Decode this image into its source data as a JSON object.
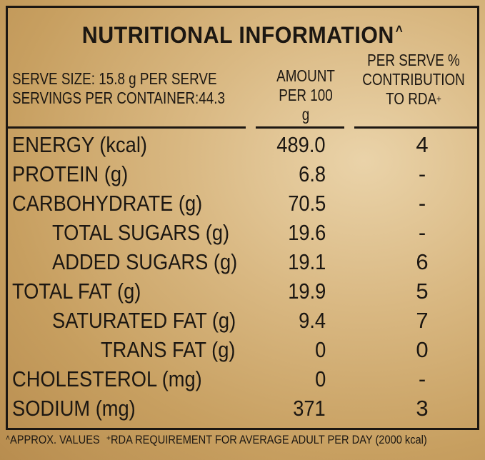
{
  "title": "NUTRITIONAL INFORMATION",
  "title_mark": "˄",
  "serve_size": "SERVE SIZE: 15.8 g PER SERVE",
  "servings": "SERVINGS PER CONTAINER:44.3",
  "amount_header": [
    "AMOUNT",
    "PER 100 g"
  ],
  "rda_header": [
    "PER SERVE %",
    "CONTRIBUTION",
    "TO RDA"
  ],
  "rda_mark": "+",
  "rows": [
    {
      "label": "ENERGY (kcal)",
      "amount": "489.0",
      "rda": "4",
      "indent": 0
    },
    {
      "label": "PROTEIN (g)",
      "amount": "6.8",
      "rda": "-",
      "indent": 0
    },
    {
      "label": "CARBOHYDRATE (g)",
      "amount": "70.5",
      "rda": "-",
      "indent": 0
    },
    {
      "label": "TOTAL SUGARS (g)",
      "amount": "19.6",
      "rda": "-",
      "indent": 1
    },
    {
      "label": "ADDED SUGARS (g)",
      "amount": "19.1",
      "rda": "6",
      "indent": 1
    },
    {
      "label": "TOTAL FAT (g)",
      "amount": "19.9",
      "rda": "5",
      "indent": 0
    },
    {
      "label": "SATURATED FAT (g)",
      "amount": "9.4",
      "rda": "7",
      "indent": 1
    },
    {
      "label": "TRANS FAT (g)",
      "amount": "0",
      "rda": "0",
      "indent": 2
    },
    {
      "label": "CHOLESTEROL (mg)",
      "amount": "0",
      "rda": "-",
      "indent": 0
    },
    {
      "label": "SODIUM (mg)",
      "amount": "371",
      "rda": "3",
      "indent": 0
    }
  ],
  "footer": {
    "approx_mark": "˄",
    "approx": "APPROX. VALUES",
    "rda_mark": "+",
    "rda_note": "RDA REQUIREMENT FOR AVERAGE ADULT PER DAY (2000 kcal)"
  }
}
